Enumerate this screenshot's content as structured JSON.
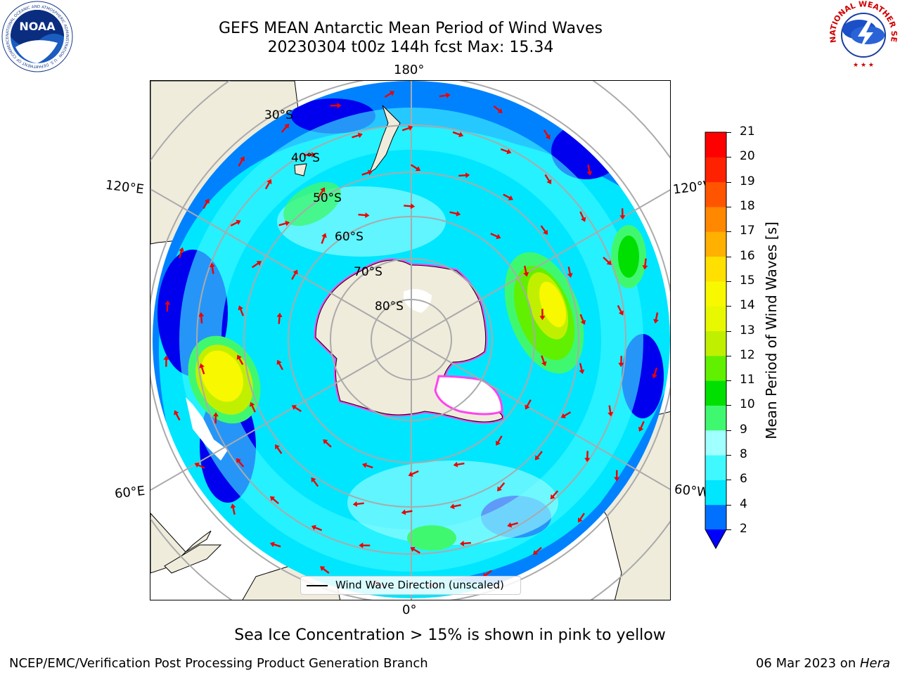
{
  "title": {
    "line1": "GEFS MEAN Antarctic Mean Period of Wind Waves",
    "line2": "20230304 t00z 144h fcst   Max: 15.34"
  },
  "map": {
    "projection": "south polar stereographic",
    "longitude_labels": {
      "top": "180°",
      "bottom": "0°",
      "left_upper": "120°E",
      "left_lower": "60°E",
      "right_upper": "120°W",
      "right_lower": "60°W"
    },
    "latitude_labels": [
      "30°S",
      "40°S",
      "50°S",
      "60°S",
      "70°S",
      "80°S"
    ],
    "legend_label": "Wind Wave Direction (unscaled)",
    "colors": {
      "land": "#efecdc",
      "sea_ice": "#ff44ee",
      "no_data": "#ffffff",
      "arrows": "#ee0000"
    }
  },
  "colorbar": {
    "label": "Mean Period of Wind Waves [s]",
    "ticks": [
      "2",
      "4",
      "6",
      "8",
      "9",
      "10",
      "11",
      "12",
      "13",
      "14",
      "15",
      "16",
      "17",
      "18",
      "19",
      "20",
      "21"
    ],
    "colors": [
      "#0070ff",
      "#00e6ff",
      "#40f8ff",
      "#a0ffff",
      "#40f870",
      "#00e000",
      "#60f000",
      "#c0f000",
      "#e8f800",
      "#f8f800",
      "#ffe000",
      "#ffb000",
      "#ff8800",
      "#ff5500",
      "#ff2200",
      "#ff0000"
    ],
    "extend_color": "#0000ff"
  },
  "footnote": "Sea Ice Concentration > 15% is shown in pink to yellow",
  "credit": "NCEP/EMC/Verification Post Processing Product Generation Branch",
  "date": "06 Mar 2023 on ",
  "host": "Hera",
  "logos": {
    "noaa": {
      "text": "NOAA",
      "ring_text": "NATIONAL OCEANIC AND ATMOSPHERIC ADMINISTRATION · U.S. DEPARTMENT OF COMMERCE"
    },
    "nws": {
      "ring_text": "NATIONAL WEATHER SERVICE"
    }
  }
}
